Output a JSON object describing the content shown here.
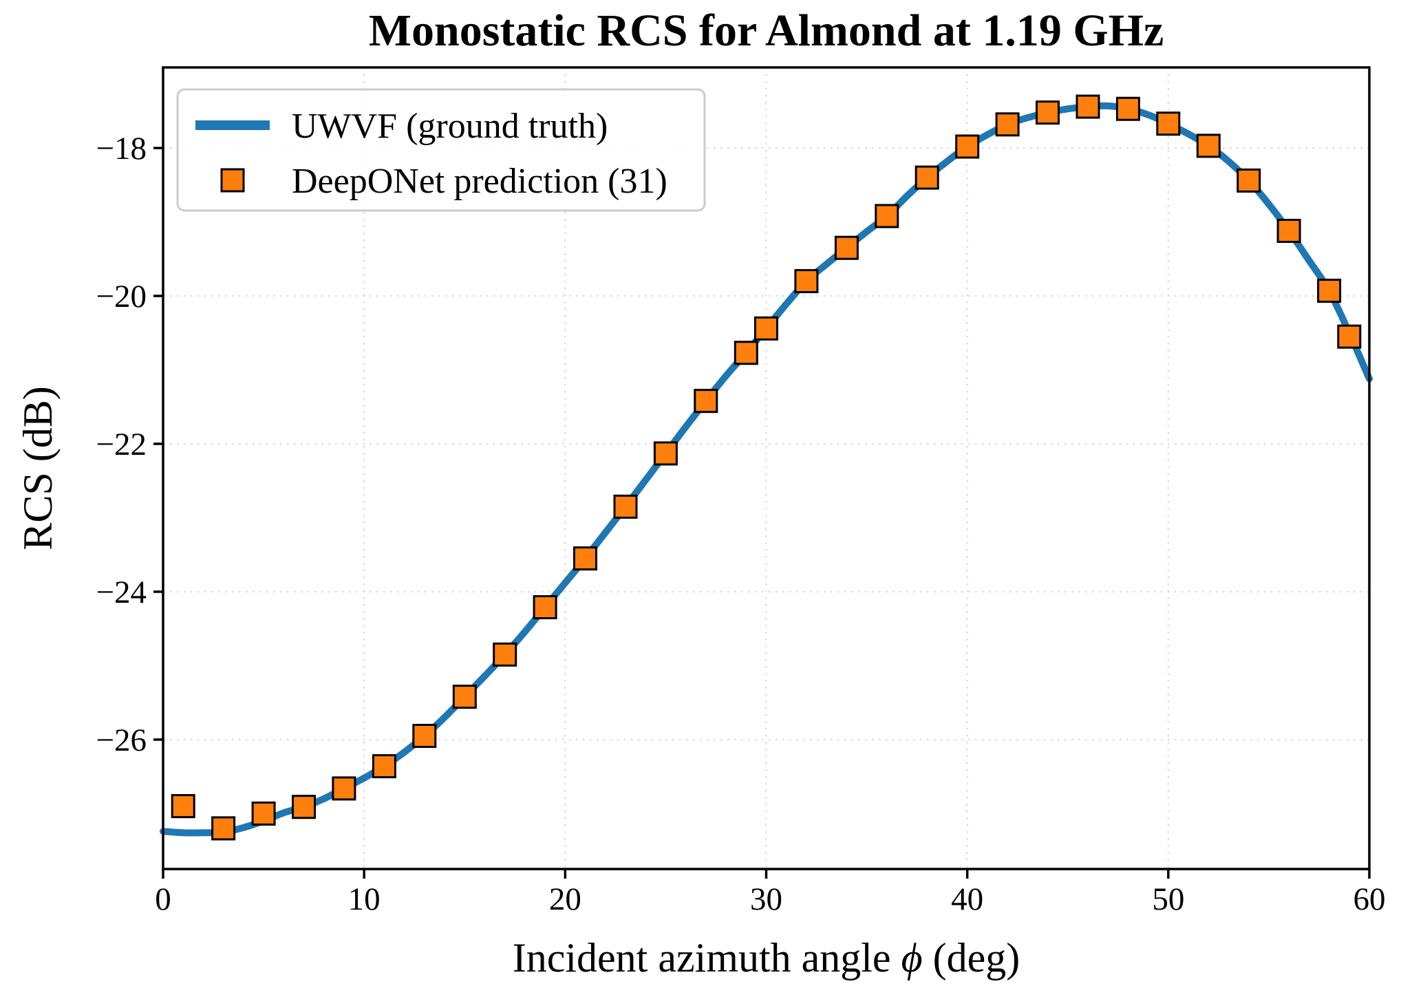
{
  "title": "Monostatic RCS for Almond at 1.19 GHz",
  "x_axis": {
    "label": "Incident azimuth angle ϕ (deg)",
    "label_prefix": "Incident azimuth angle ",
    "phi_symbol": "ϕ",
    "label_suffix": " (deg)",
    "tick_labels": [
      "0",
      "10",
      "20",
      "30",
      "40",
      "50",
      "60"
    ],
    "tick_values": [
      0,
      10,
      20,
      30,
      40,
      50,
      60
    ],
    "range": [
      0,
      60
    ]
  },
  "y_axis": {
    "label": "RCS (dB)",
    "tick_labels": [
      "−18",
      "−20",
      "−22",
      "−24",
      "−26"
    ],
    "tick_values": [
      -18,
      -20,
      -22,
      -24,
      -26
    ],
    "range": [
      -27.75,
      -16.91
    ]
  },
  "legend": {
    "position": "upper-left",
    "items": [
      {
        "label": "UWVF (ground truth)",
        "type": "line",
        "color": "#1f77b4"
      },
      {
        "label": "DeepONet prediction (31)",
        "type": "square",
        "color": "#ff7f0e"
      }
    ]
  },
  "colors": {
    "line": "#1f77b4",
    "marker_fill": "#ff7f0e",
    "marker_edge": "#000000",
    "grid": "#d9d9d9",
    "spine": "#000000",
    "legend_border": "#cccccc",
    "background": "#ffffff"
  },
  "chart_data": {
    "type": "line",
    "title": "Monostatic RCS for Almond at 1.19 GHz",
    "xlabel": "Incident azimuth angle ϕ (deg)",
    "ylabel": "RCS (dB)",
    "xlim": [
      0,
      60
    ],
    "ylim": [
      -27.75,
      -16.91
    ],
    "grid": "dotted",
    "legend_position": "upper-left",
    "series": [
      {
        "name": "UWVF (ground truth)",
        "style": "line",
        "color": "#1f77b4",
        "linewidth": 10,
        "x": [
          0,
          1,
          2,
          3,
          4,
          5,
          6,
          7,
          8,
          9,
          10,
          11,
          12,
          13,
          14,
          15,
          16,
          17,
          18,
          19,
          20,
          21,
          22,
          23,
          24,
          25,
          26,
          27,
          28,
          29,
          30,
          31,
          32,
          33,
          34,
          35,
          36,
          37,
          38,
          39,
          40,
          41,
          42,
          43,
          44,
          45,
          46,
          47,
          48,
          49,
          50,
          51,
          52,
          53,
          54,
          55,
          56,
          57,
          58,
          59,
          60
        ],
        "y": [
          -27.24,
          -27.26,
          -27.26,
          -27.25,
          -27.19,
          -27.1,
          -26.99,
          -26.91,
          -26.8,
          -26.66,
          -26.52,
          -26.36,
          -26.17,
          -25.95,
          -25.7,
          -25.42,
          -25.14,
          -24.85,
          -24.54,
          -24.21,
          -23.88,
          -23.55,
          -23.2,
          -22.85,
          -22.49,
          -22.13,
          -21.77,
          -21.42,
          -21.08,
          -20.77,
          -20.44,
          -20.11,
          -19.8,
          -19.57,
          -19.35,
          -19.13,
          -18.92,
          -18.65,
          -18.4,
          -18.18,
          -17.98,
          -17.82,
          -17.68,
          -17.59,
          -17.52,
          -17.47,
          -17.44,
          -17.43,
          -17.47,
          -17.55,
          -17.67,
          -17.81,
          -17.97,
          -18.18,
          -18.44,
          -18.76,
          -19.12,
          -19.52,
          -19.93,
          -20.5,
          -21.12
        ]
      },
      {
        "name": "DeepONet prediction (31)",
        "style": "scatter-square",
        "color": "#ff7f0e",
        "marker_size": 32,
        "x": [
          1,
          3,
          5,
          7,
          9,
          11,
          13,
          15,
          17,
          19,
          21,
          23,
          25,
          27,
          29,
          30,
          32,
          34,
          36,
          38,
          40,
          42,
          44,
          46,
          48,
          50,
          52,
          54,
          56,
          58,
          59
        ],
        "y": [
          -26.9,
          -27.2,
          -27.0,
          -26.91,
          -26.66,
          -26.36,
          -25.95,
          -25.42,
          -24.85,
          -24.21,
          -23.55,
          -22.85,
          -22.13,
          -21.42,
          -20.77,
          -20.44,
          -19.8,
          -19.35,
          -18.92,
          -18.4,
          -17.98,
          -17.68,
          -17.52,
          -17.44,
          -17.47,
          -17.67,
          -17.97,
          -18.44,
          -19.12,
          -19.93,
          -20.55
        ]
      }
    ]
  }
}
